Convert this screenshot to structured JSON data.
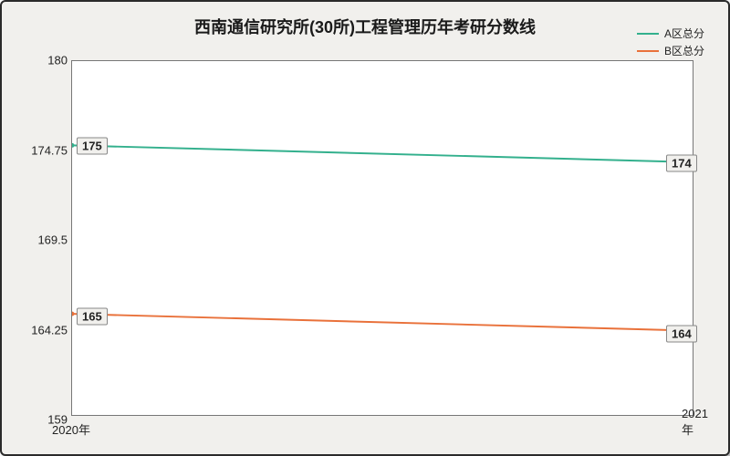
{
  "chart": {
    "type": "line",
    "title": "西南通信研究所(30所)工程管理历年考研分数线",
    "title_fontsize": 18,
    "background_color": "#f1f0ed",
    "plot_background": "#ffffff",
    "border_color": "#2a2a2a",
    "x": {
      "categories": [
        "2020年",
        "2021年"
      ],
      "fontsize": 13
    },
    "y": {
      "lim": [
        159,
        180
      ],
      "ticks": [
        159,
        164.25,
        169.5,
        174.75,
        180
      ],
      "tick_labels": [
        "159",
        "164.25",
        "169.5",
        "174.75",
        "180"
      ],
      "fontsize": 13
    },
    "series": [
      {
        "name": "A区总分",
        "color": "#33b08d",
        "line_width": 2,
        "values": [
          175,
          174
        ],
        "labels": [
          "175",
          "174"
        ]
      },
      {
        "name": "B区总分",
        "color": "#e9713a",
        "line_width": 2,
        "values": [
          165,
          164
        ],
        "labels": [
          "165",
          "164"
        ]
      }
    ],
    "legend": {
      "position": "top-right",
      "fontsize": 12
    },
    "data_label_bg": "#f1f0ed",
    "data_label_border": "#888888"
  }
}
